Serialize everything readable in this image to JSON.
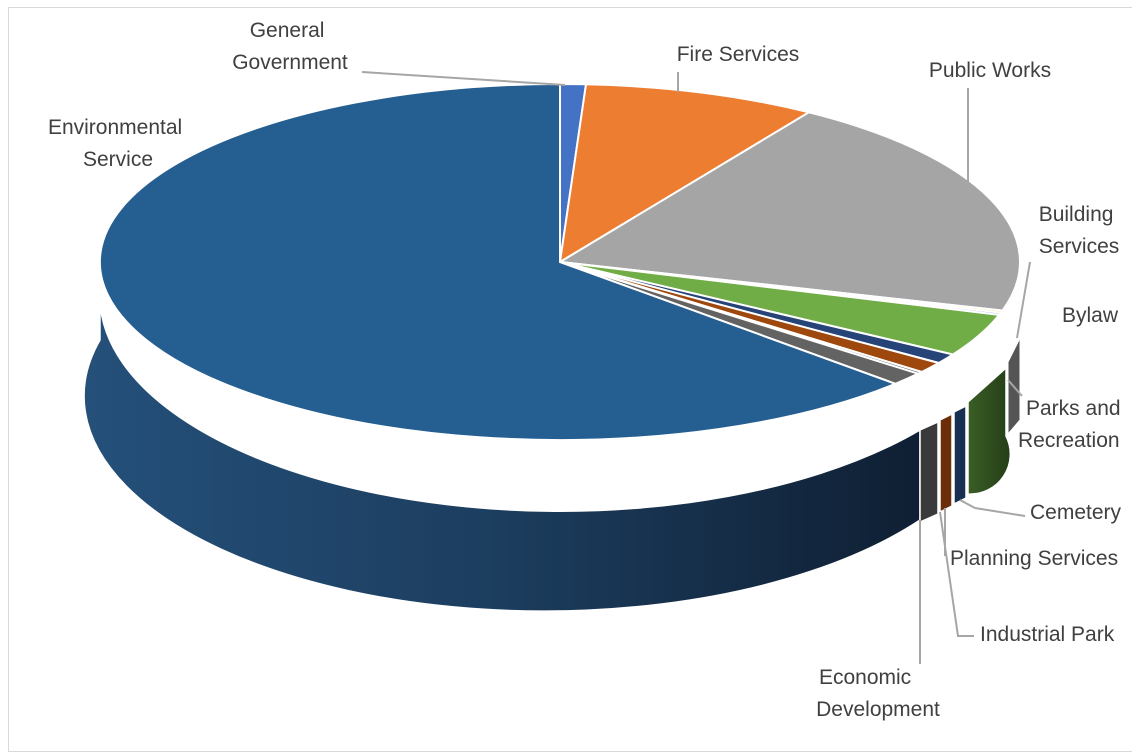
{
  "chart_data": {
    "type": "pie",
    "title": "",
    "style": "3d-exploded-perspective",
    "slices": [
      {
        "name": "General Government",
        "value": 0.9,
        "color": "#4472c4"
      },
      {
        "name": "Fire Services",
        "value": 8.2,
        "color": "#ed7d31"
      },
      {
        "name": "Public Works",
        "value": 20.3,
        "color": "#a5a5a5"
      },
      {
        "name": "Building Services",
        "value": 0.2,
        "color": "#ffc000"
      },
      {
        "name": "Bylaw",
        "value": 0.2,
        "color": "#5b9bd5"
      },
      {
        "name": "Parks and Recreation",
        "value": 3.9,
        "color": "#70ad47"
      },
      {
        "name": "Cemetery",
        "value": 0.9,
        "color": "#264478"
      },
      {
        "name": "Planning Services",
        "value": 1.0,
        "color": "#9e480e"
      },
      {
        "name": "Industrial Park",
        "value": 0.2,
        "color": "#636363"
      },
      {
        "name": "Economic Development",
        "value": 1.2,
        "color": "#636363"
      },
      {
        "name": "Environmental Service",
        "value": 63.0,
        "color": "#255e91"
      }
    ],
    "labels": {
      "general_government": [
        "General",
        "Government"
      ],
      "fire_services": [
        "Fire Services"
      ],
      "public_works": [
        "Public Works"
      ],
      "building_services": [
        "Building",
        "Services"
      ],
      "bylaw": [
        "Bylaw"
      ],
      "parks_and_recreation": [
        "Parks and",
        "Recreation"
      ],
      "cemetery": [
        "Cemetery"
      ],
      "planning_services": [
        "Planning Services"
      ],
      "industrial_park": [
        "Industrial Park"
      ],
      "economic_development": [
        "Economic",
        "Development"
      ],
      "environmental_service": [
        "Environmental",
        "Service"
      ]
    }
  }
}
